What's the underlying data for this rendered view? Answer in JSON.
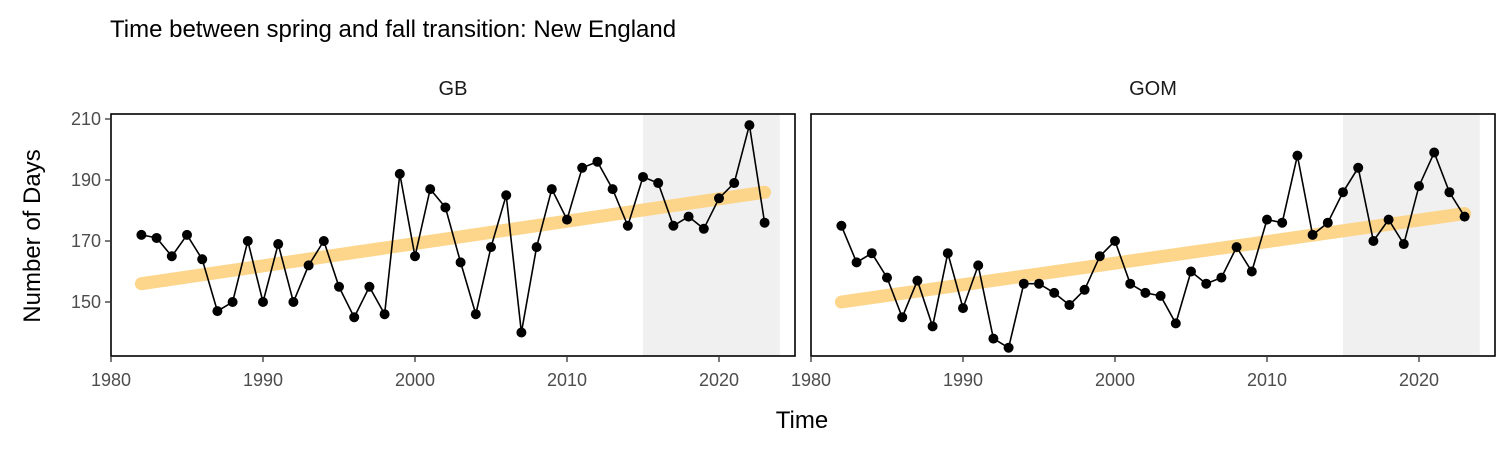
{
  "chart_data": {
    "type": "line",
    "title": "Time between spring and fall transition: New England",
    "xlabel": "Time",
    "ylabel": "Number of Days",
    "xlim": [
      1980,
      2025
    ],
    "ylim": [
      132,
      211
    ],
    "x_ticks": [
      1980,
      1990,
      2000,
      2010,
      2020
    ],
    "y_ticks": [
      150,
      170,
      190,
      210
    ],
    "highlight_range": [
      2015,
      2024
    ],
    "panels": [
      {
        "name": "GB",
        "x": [
          1982,
          1983,
          1984,
          1985,
          1986,
          1987,
          1988,
          1989,
          1990,
          1991,
          1992,
          1993,
          1994,
          1995,
          1996,
          1997,
          1998,
          1999,
          2000,
          2001,
          2002,
          2003,
          2004,
          2005,
          2006,
          2007,
          2008,
          2009,
          2010,
          2011,
          2012,
          2013,
          2014,
          2015,
          2016,
          2017,
          2018,
          2019,
          2020,
          2021,
          2022,
          2023
        ],
        "values": [
          172,
          171,
          165,
          172,
          164,
          147,
          150,
          170,
          150,
          169,
          150,
          162,
          170,
          155,
          145,
          155,
          146,
          192,
          165,
          187,
          181,
          163,
          146,
          168,
          185,
          140,
          168,
          187,
          177,
          194,
          196,
          187,
          175,
          191,
          189,
          175,
          178,
          174,
          184,
          189,
          208,
          176
        ],
        "trend": {
          "start": [
            1982,
            156
          ],
          "end": [
            2023,
            186
          ]
        }
      },
      {
        "name": "GOM",
        "x": [
          1982,
          1983,
          1984,
          1985,
          1986,
          1987,
          1988,
          1989,
          1990,
          1991,
          1992,
          1993,
          1994,
          1995,
          1996,
          1997,
          1998,
          1999,
          2000,
          2001,
          2002,
          2003,
          2004,
          2005,
          2006,
          2007,
          2008,
          2009,
          2010,
          2011,
          2012,
          2013,
          2014,
          2015,
          2016,
          2017,
          2018,
          2019,
          2020,
          2021,
          2022,
          2023
        ],
        "values": [
          175,
          163,
          166,
          158,
          145,
          157,
          142,
          166,
          148,
          162,
          138,
          135,
          156,
          156,
          153,
          149,
          154,
          165,
          170,
          156,
          153,
          152,
          143,
          160,
          156,
          158,
          168,
          160,
          177,
          176,
          198,
          172,
          176,
          186,
          194,
          170,
          177,
          169,
          188,
          199,
          186,
          178
        ],
        "trend": {
          "start": [
            1982,
            150
          ],
          "end": [
            2023,
            179
          ]
        }
      }
    ],
    "colors": {
      "points": "#000000",
      "trend": "#FDD385",
      "highlight": "#F0F0F0",
      "panel_border": "#000000"
    },
    "grid": false,
    "legend": "none"
  }
}
